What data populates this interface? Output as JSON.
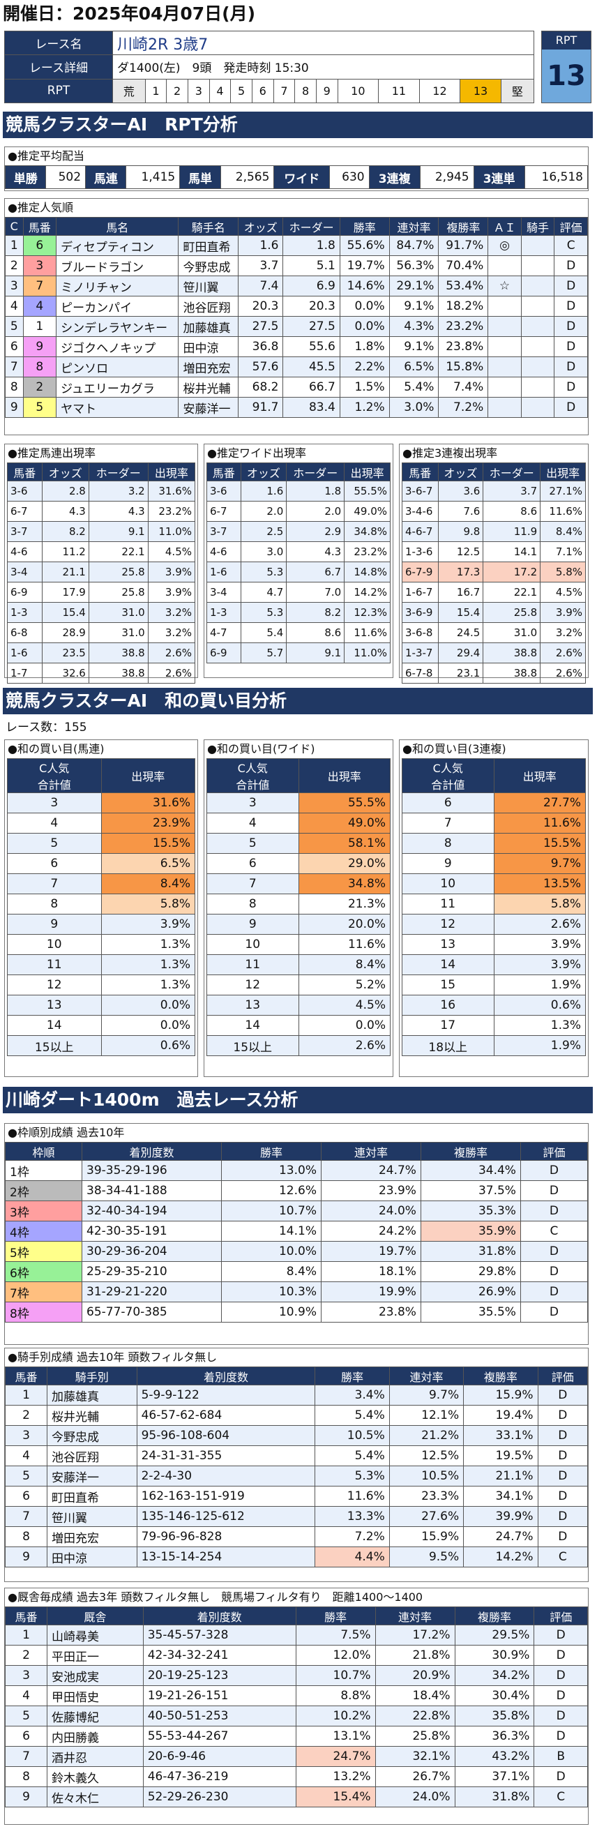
{
  "date_label": "開催日：2025年04月07日(月)",
  "race": {
    "name_label": "レース名",
    "name": "川崎2R 3歳7",
    "detail_label": "レース詳細",
    "detail": "ダ1400(左)　9頭　発走時刻 15:30",
    "rpt_label": "RPT",
    "rpt_scale": [
      "荒",
      "1",
      "2",
      "3",
      "4",
      "5",
      "6",
      "7",
      "8",
      "9",
      "10",
      "11",
      "12",
      "13",
      "堅"
    ],
    "rpt_value": "13",
    "rpt_title": "RPT"
  },
  "sec1_title": "競馬クラスターAI　RPT分析",
  "payout": {
    "title": "●推定平均配当",
    "items": [
      [
        "単勝",
        "502"
      ],
      [
        "馬連",
        "1,415"
      ],
      [
        "馬単",
        "2,565"
      ],
      [
        "ワイド",
        "630"
      ],
      [
        "3連複",
        "2,945"
      ],
      [
        "3連単",
        "16,518"
      ]
    ]
  },
  "pop": {
    "title": "●推定人気順",
    "headers": [
      "C",
      "馬番",
      "馬名",
      "騎手名",
      "オッズ",
      "ホーダー",
      "勝率",
      "連対率",
      "複勝率",
      "ＡＩ",
      "騎手",
      "評価"
    ],
    "rows": [
      [
        "1",
        "6",
        "ディセプティコン",
        "町田直希",
        "1.6",
        "1.8",
        "55.6%",
        "84.7%",
        "91.7%",
        "◎",
        "",
        "C"
      ],
      [
        "2",
        "3",
        "ブルードラゴン",
        "今野忠成",
        "3.7",
        "5.1",
        "19.7%",
        "56.3%",
        "70.4%",
        "",
        "",
        "D"
      ],
      [
        "3",
        "7",
        "ミノリチャン",
        "笹川翼",
        "7.4",
        "6.9",
        "14.6%",
        "29.1%",
        "53.4%",
        "☆",
        "",
        "D"
      ],
      [
        "4",
        "4",
        "ピーカンパイ",
        "池谷匠翔",
        "20.3",
        "20.3",
        "0.0%",
        "9.1%",
        "18.2%",
        "",
        "",
        "D"
      ],
      [
        "5",
        "1",
        "シンデレラヤンキー",
        "加藤雄真",
        "27.5",
        "27.5",
        "0.0%",
        "4.3%",
        "23.2%",
        "",
        "",
        "D"
      ],
      [
        "6",
        "9",
        "ジゴクヘノキップ",
        "田中涼",
        "36.8",
        "55.6",
        "1.8%",
        "9.1%",
        "23.8%",
        "",
        "",
        "D"
      ],
      [
        "7",
        "8",
        "ピンソロ",
        "増田充宏",
        "57.6",
        "45.5",
        "2.2%",
        "6.5%",
        "15.8%",
        "",
        "",
        "D"
      ],
      [
        "8",
        "2",
        "ジュエリーカグラ",
        "桜井光輔",
        "68.2",
        "66.7",
        "1.5%",
        "5.4%",
        "7.4%",
        "",
        "",
        "D"
      ],
      [
        "9",
        "5",
        "ヤマト",
        "安藤洋一",
        "91.7",
        "83.4",
        "1.2%",
        "3.0%",
        "7.2%",
        "",
        "",
        "D"
      ]
    ]
  },
  "umaren": {
    "title": "●推定馬連出現率",
    "headers": [
      "馬番",
      "オッズ",
      "ホーダー",
      "出現率"
    ],
    "rows": [
      [
        "3-6",
        "2.8",
        "3.2",
        "31.6%"
      ],
      [
        "6-7",
        "4.3",
        "4.3",
        "23.2%"
      ],
      [
        "3-7",
        "8.2",
        "9.1",
        "11.0%"
      ],
      [
        "4-6",
        "11.2",
        "22.1",
        "4.5%"
      ],
      [
        "3-4",
        "21.1",
        "25.8",
        "3.9%"
      ],
      [
        "6-9",
        "17.9",
        "25.8",
        "3.9%"
      ],
      [
        "1-3",
        "15.4",
        "31.0",
        "3.2%"
      ],
      [
        "6-8",
        "28.9",
        "31.0",
        "3.2%"
      ],
      [
        "1-6",
        "23.5",
        "38.8",
        "2.6%"
      ],
      [
        "1-7",
        "32.6",
        "38.8",
        "2.6%"
      ]
    ]
  },
  "wide": {
    "title": "●推定ワイド出現率",
    "headers": [
      "馬番",
      "オッズ",
      "ホーダー",
      "出現率"
    ],
    "rows": [
      [
        "3-6",
        "1.6",
        "1.8",
        "55.5%"
      ],
      [
        "6-7",
        "2.0",
        "2.0",
        "49.0%"
      ],
      [
        "3-7",
        "2.5",
        "2.9",
        "34.8%"
      ],
      [
        "4-6",
        "3.0",
        "4.3",
        "23.2%"
      ],
      [
        "1-6",
        "5.3",
        "6.7",
        "14.8%"
      ],
      [
        "3-4",
        "4.7",
        "7.0",
        "14.2%"
      ],
      [
        "1-3",
        "5.3",
        "8.2",
        "12.3%"
      ],
      [
        "4-7",
        "5.4",
        "8.6",
        "11.6%"
      ],
      [
        "6-9",
        "5.7",
        "9.1",
        "11.0%"
      ]
    ]
  },
  "sanren": {
    "title": "●推定3連複出現率",
    "headers": [
      "馬番",
      "オッズ",
      "ホーダー",
      "出現率"
    ],
    "rows": [
      [
        "3-6-7",
        "3.6",
        "3.7",
        "27.1%"
      ],
      [
        "3-4-6",
        "7.6",
        "8.6",
        "11.6%"
      ],
      [
        "4-6-7",
        "9.8",
        "11.9",
        "8.4%"
      ],
      [
        "1-3-6",
        "12.5",
        "14.1",
        "7.1%"
      ],
      [
        "6-7-9",
        "17.3",
        "17.2",
        "5.8%"
      ],
      [
        "1-6-7",
        "16.7",
        "22.1",
        "4.5%"
      ],
      [
        "3-6-9",
        "15.4",
        "25.8",
        "3.9%"
      ],
      [
        "3-6-8",
        "24.5",
        "31.0",
        "3.2%"
      ],
      [
        "1-3-7",
        "29.4",
        "38.8",
        "2.6%"
      ],
      [
        "6-7-8",
        "23.1",
        "38.8",
        "2.6%"
      ]
    ]
  },
  "sec2_title": "競馬クラスターAI　和の買い目分析",
  "race_count": "レース数：155",
  "sum_umaren": {
    "title": "●和の買い目(馬連)",
    "h1": "C人気",
    "h2": "合計値",
    "h3": "出現率",
    "rows": [
      [
        "3",
        "31.6%"
      ],
      [
        "4",
        "23.9%"
      ],
      [
        "5",
        "15.5%"
      ],
      [
        "6",
        "6.5%"
      ],
      [
        "7",
        "8.4%"
      ],
      [
        "8",
        "5.8%"
      ],
      [
        "9",
        "3.9%"
      ],
      [
        "10",
        "1.3%"
      ],
      [
        "11",
        "1.3%"
      ],
      [
        "12",
        "1.3%"
      ],
      [
        "13",
        "0.0%"
      ],
      [
        "14",
        "0.0%"
      ],
      [
        "15以上",
        "0.6%"
      ]
    ]
  },
  "sum_wide": {
    "title": "●和の買い目(ワイド)",
    "h1": "C人気",
    "h2": "合計値",
    "h3": "出現率",
    "rows": [
      [
        "3",
        "55.5%"
      ],
      [
        "4",
        "49.0%"
      ],
      [
        "5",
        "58.1%"
      ],
      [
        "6",
        "29.0%"
      ],
      [
        "7",
        "34.8%"
      ],
      [
        "8",
        "21.3%"
      ],
      [
        "9",
        "20.0%"
      ],
      [
        "10",
        "11.6%"
      ],
      [
        "11",
        "8.4%"
      ],
      [
        "12",
        "5.2%"
      ],
      [
        "13",
        "4.5%"
      ],
      [
        "14",
        "0.0%"
      ],
      [
        "15以上",
        "2.6%"
      ]
    ]
  },
  "sum_sanren": {
    "title": "●和の買い目(3連複)",
    "h1": "C人気",
    "h2": "合計値",
    "h3": "出現率",
    "rows": [
      [
        "6",
        "27.7%"
      ],
      [
        "7",
        "11.6%"
      ],
      [
        "8",
        "15.5%"
      ],
      [
        "9",
        "9.7%"
      ],
      [
        "10",
        "13.5%"
      ],
      [
        "11",
        "5.8%"
      ],
      [
        "12",
        "2.6%"
      ],
      [
        "13",
        "3.9%"
      ],
      [
        "14",
        "3.9%"
      ],
      [
        "15",
        "1.9%"
      ],
      [
        "16",
        "0.6%"
      ],
      [
        "17",
        "1.3%"
      ],
      [
        "18以上",
        "1.9%"
      ]
    ]
  },
  "sec3_title": "川崎ダート1400m　過去レース分析",
  "waku": {
    "title": "●枠順別成績 過去10年",
    "headers": [
      "枠順",
      "着別度数",
      "勝率",
      "連対率",
      "複勝率",
      "評価"
    ],
    "rows": [
      [
        "1枠",
        "39-35-29-196",
        "13.0%",
        "24.7%",
        "34.4%",
        "D"
      ],
      [
        "2枠",
        "38-34-41-188",
        "12.6%",
        "23.9%",
        "37.5%",
        "D"
      ],
      [
        "3枠",
        "32-40-34-194",
        "10.7%",
        "24.0%",
        "35.3%",
        "D"
      ],
      [
        "4枠",
        "42-30-35-191",
        "14.1%",
        "24.2%",
        "35.9%",
        "C"
      ],
      [
        "5枠",
        "30-29-36-204",
        "10.0%",
        "19.7%",
        "31.8%",
        "D"
      ],
      [
        "6枠",
        "25-29-35-210",
        "8.4%",
        "18.1%",
        "29.8%",
        "D"
      ],
      [
        "7枠",
        "31-29-21-220",
        "10.3%",
        "19.9%",
        "26.9%",
        "D"
      ],
      [
        "8枠",
        "65-77-70-385",
        "10.9%",
        "23.8%",
        "35.5%",
        "D"
      ]
    ]
  },
  "jockey": {
    "title": "●騎手別成績 過去10年 頭数フィルタ無し",
    "headers": [
      "馬番",
      "騎手別",
      "着別度数",
      "勝率",
      "連対率",
      "複勝率",
      "評価"
    ],
    "rows": [
      [
        "1",
        "加藤雄真",
        "5-9-9-122",
        "3.4%",
        "9.7%",
        "15.9%",
        "D"
      ],
      [
        "2",
        "桜井光輔",
        "46-57-62-684",
        "5.4%",
        "12.1%",
        "19.4%",
        "D"
      ],
      [
        "3",
        "今野忠成",
        "95-96-108-604",
        "10.5%",
        "21.2%",
        "33.1%",
        "D"
      ],
      [
        "4",
        "池谷匠翔",
        "24-31-31-355",
        "5.4%",
        "12.5%",
        "19.5%",
        "D"
      ],
      [
        "5",
        "安藤洋一",
        "2-2-4-30",
        "5.3%",
        "10.5%",
        "21.1%",
        "D"
      ],
      [
        "6",
        "町田直希",
        "162-163-151-919",
        "11.6%",
        "23.3%",
        "34.1%",
        "D"
      ],
      [
        "7",
        "笹川翼",
        "135-146-125-612",
        "13.3%",
        "27.6%",
        "39.9%",
        "D"
      ],
      [
        "8",
        "増田充宏",
        "79-96-96-828",
        "7.2%",
        "15.9%",
        "24.7%",
        "D"
      ],
      [
        "9",
        "田中涼",
        "13-15-14-254",
        "4.4%",
        "9.5%",
        "14.2%",
        "C"
      ]
    ]
  },
  "trainer": {
    "title": "●厩舎毎成績 過去3年 頭数フィルタ無し　競馬場フィルタ有り　距離1400～1400",
    "headers": [
      "馬番",
      "厩舎",
      "着別度数",
      "勝率",
      "連対率",
      "複勝率",
      "評価"
    ],
    "rows": [
      [
        "1",
        "山崎尋美",
        "35-45-57-328",
        "7.5%",
        "17.2%",
        "29.5%",
        "D"
      ],
      [
        "2",
        "平田正一",
        "42-34-32-241",
        "12.0%",
        "21.8%",
        "30.9%",
        "D"
      ],
      [
        "3",
        "安池成実",
        "20-19-25-123",
        "10.7%",
        "20.9%",
        "34.2%",
        "D"
      ],
      [
        "4",
        "甲田悟史",
        "19-21-26-151",
        "8.8%",
        "18.4%",
        "30.4%",
        "D"
      ],
      [
        "5",
        "佐藤博紀",
        "40-50-51-253",
        "10.2%",
        "22.8%",
        "35.8%",
        "D"
      ],
      [
        "6",
        "内田勝義",
        "55-53-44-267",
        "13.1%",
        "25.8%",
        "36.3%",
        "D"
      ],
      [
        "7",
        "酒井忍",
        "20-6-9-46",
        "24.7%",
        "32.1%",
        "43.2%",
        "B"
      ],
      [
        "8",
        "鈴木義久",
        "46-47-36-219",
        "13.2%",
        "26.7%",
        "37.1%",
        "D"
      ],
      [
        "9",
        "佐々木仁",
        "52-29-26-230",
        "15.4%",
        "24.0%",
        "31.8%",
        "C"
      ]
    ]
  }
}
